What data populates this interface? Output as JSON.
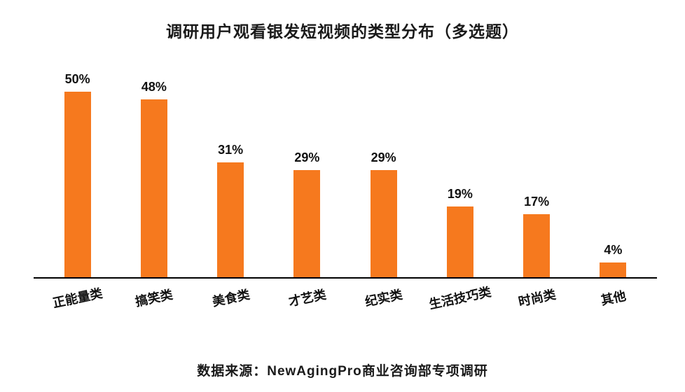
{
  "title": "调研用户观看银发短视频的类型分布（多选题）",
  "source": "数据来源：NewAgingPro商业咨询部专项调研",
  "chart_data": {
    "type": "bar",
    "title": "调研用户观看银发短视频的类型分布（多选题）",
    "categories": [
      "正能量类",
      "搞笑类",
      "美食类",
      "才艺类",
      "纪实类",
      "生活技巧类",
      "时尚类",
      "其他"
    ],
    "values": [
      50,
      48,
      31,
      29,
      29,
      19,
      17,
      4
    ],
    "value_labels": [
      "50%",
      "48%",
      "31%",
      "29%",
      "29%",
      "19%",
      "17%",
      "4%"
    ],
    "xlabel": "",
    "ylabel": "",
    "ylim": [
      0,
      55
    ],
    "unit": "%",
    "bar_color": "#F6791E",
    "grid": false,
    "legend": false,
    "caption": "数据来源：NewAgingPro商业咨询部专项调研"
  }
}
